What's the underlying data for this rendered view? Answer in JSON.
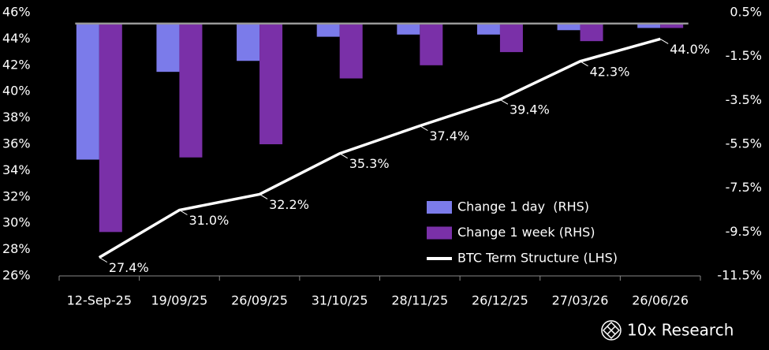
{
  "chart_data": {
    "type": "bar",
    "categories": [
      "12-Sep-25",
      "19/09/25",
      "26/09/25",
      "31/10/25",
      "28/11/25",
      "26/12/25",
      "27/03/26",
      "26/06/26"
    ],
    "series": [
      {
        "name": "Change 1 day  (RHS)",
        "color": "#7b7bea",
        "axis": "y2",
        "values": [
          -6.2,
          -2.2,
          -1.7,
          -0.6,
          -0.5,
          -0.5,
          -0.3,
          -0.2
        ]
      },
      {
        "name": "Change 1 week (RHS)",
        "color": "#7a30a8",
        "axis": "y2",
        "values": [
          -9.5,
          -6.1,
          -5.5,
          -2.5,
          -1.9,
          -1.3,
          -0.8,
          -0.2
        ]
      },
      {
        "name": "BTC Term Structure (LHS)",
        "color": "#ffffff",
        "type": "line",
        "values": [
          27.4,
          31.0,
          32.2,
          35.3,
          37.4,
          39.4,
          42.3,
          44.0
        ],
        "value_labels": [
          "27.4%",
          "31.0%",
          "32.2%",
          "35.3%",
          "37.4%",
          "39.4%",
          "42.3%",
          "44.0%"
        ]
      }
    ],
    "ylim": [
      26,
      46
    ],
    "yticks": [
      {
        "value": 26,
        "label": "26%"
      },
      {
        "value": 28,
        "label": "28%"
      },
      {
        "value": 30,
        "label": "30%"
      },
      {
        "value": 32,
        "label": "32%"
      },
      {
        "value": 34,
        "label": "34%"
      },
      {
        "value": 36,
        "label": "36%"
      },
      {
        "value": 38,
        "label": "38%"
      },
      {
        "value": 40,
        "label": "40%"
      },
      {
        "value": 42,
        "label": "42%"
      },
      {
        "value": 44,
        "label": "44%"
      },
      {
        "value": 46,
        "label": "46%"
      }
    ],
    "y2lim": [
      -11.5,
      0.5
    ],
    "y2ticks": [
      {
        "value": 0.5,
        "label": "0.5%"
      },
      {
        "value": -1.5,
        "label": "-1.5%"
      },
      {
        "value": -3.5,
        "label": "-3.5%"
      },
      {
        "value": -5.5,
        "label": "-5.5%"
      },
      {
        "value": -7.5,
        "label": "-7.5%"
      },
      {
        "value": -9.5,
        "label": "-9.5%"
      },
      {
        "value": -11.5,
        "label": "-11.5%"
      }
    ],
    "legend": "lower right",
    "grid": false,
    "brand": "10x Research"
  }
}
